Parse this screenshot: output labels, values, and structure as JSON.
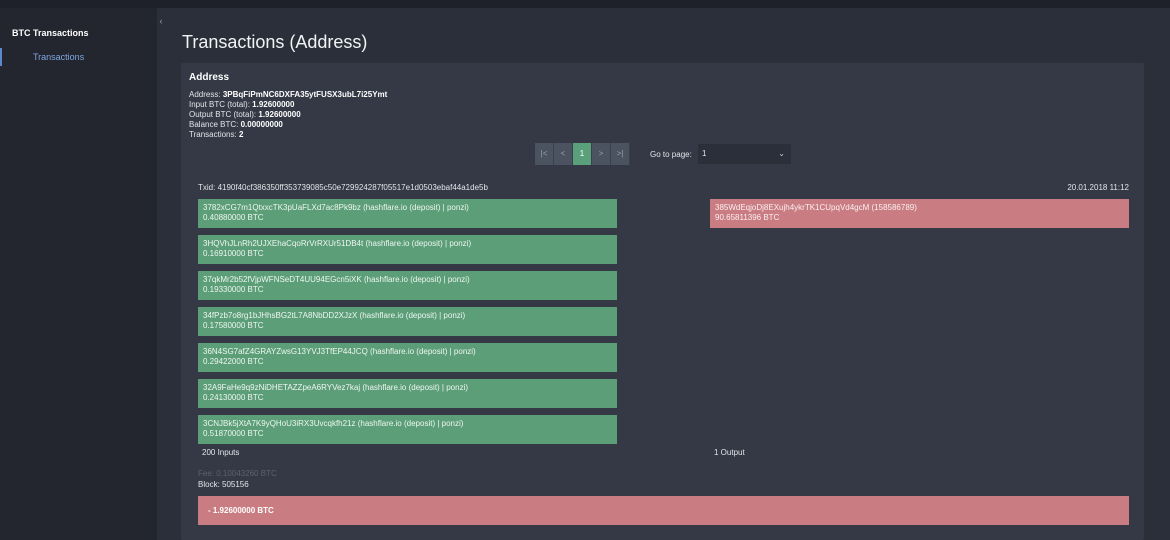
{
  "sidebar": {
    "brand": "BTC Transactions",
    "items": [
      {
        "label": "Transactions"
      }
    ]
  },
  "page": {
    "title": "Transactions (Address)"
  },
  "address_card": {
    "title": "Address",
    "address_label": "Address:",
    "address": "3PBqFiPmNC6DXFA35ytFUSX3ubL7i25Ymt",
    "input_label": "Input BTC (total):",
    "input_total": "1.92600000",
    "output_label": "Output BTC (total):",
    "output_total": "1.92600000",
    "balance_label": "Balance BTC:",
    "balance": "0.00000000",
    "tx_label": "Transactions:",
    "tx_count": "2"
  },
  "pagination": {
    "first": "|<",
    "prev": "<",
    "current": "1",
    "next": ">",
    "last": ">|",
    "goto_label": "Go to page:",
    "goto_value": "1"
  },
  "transaction": {
    "txid_label": "Txid:",
    "txid": "4190f40cf386350ff353739085c50e729924287f05517e1d0503ebaf44a1de5b",
    "date": "20.01.2018 11:12",
    "inputs": [
      {
        "address": "3782xCG7m1QtxxcTK3pUaFLXd7ac8Pk9bz (hashflare.io (deposit) | ponzi)",
        "amount": "0.40880000 BTC"
      },
      {
        "address": "3HQVhJLnRh2UJXEhaCqoRrVrRXUr51DB4t (hashflare.io (deposit) | ponzi)",
        "amount": "0.16910000 BTC"
      },
      {
        "address": "37qkMr2b52fVjpWFNSeDT4UU94EGcn5iXK (hashflare.io (deposit) | ponzi)",
        "amount": "0.19330000 BTC"
      },
      {
        "address": "34fPzb7o8rg1bJHhsBG2tL7A8NbDD2XJzX (hashflare.io (deposit) | ponzi)",
        "amount": "0.17580000 BTC"
      },
      {
        "address": "36N4SG7afZ4GRAYZwsG13YVJ3TfEP44JCQ (hashflare.io (deposit) | ponzi)",
        "amount": "0.29422000 BTC"
      },
      {
        "address": "32A9FaHe9q9zNiDHETAZZpeA6RYVez7kaj (hashflare.io (deposit) | ponzi)",
        "amount": "0.24130000 BTC"
      },
      {
        "address": "3CNJBk5jXtA7K9yQHoU3iRX3Uvcqkfh21z (hashflare.io (deposit) | ponzi)",
        "amount": "0.51870000 BTC"
      }
    ],
    "outputs": [
      {
        "address": "385WdEqjoDj8EXujh4ykrTK1CUpqVd4gcM (158586789)",
        "amount": "90.65811396 BTC"
      }
    ],
    "inputs_count": "200 Inputs",
    "outputs_count": "1 Output",
    "fee": "Fee: 0.10043260 BTC",
    "block": "Block: 505156",
    "net_change": "- 1.92600000 BTC"
  },
  "colors": {
    "input_green": "#5c9e78",
    "output_red": "#c97d83",
    "active_page": "#5aa17b",
    "sidebar_accent": "#7fa7e0"
  }
}
